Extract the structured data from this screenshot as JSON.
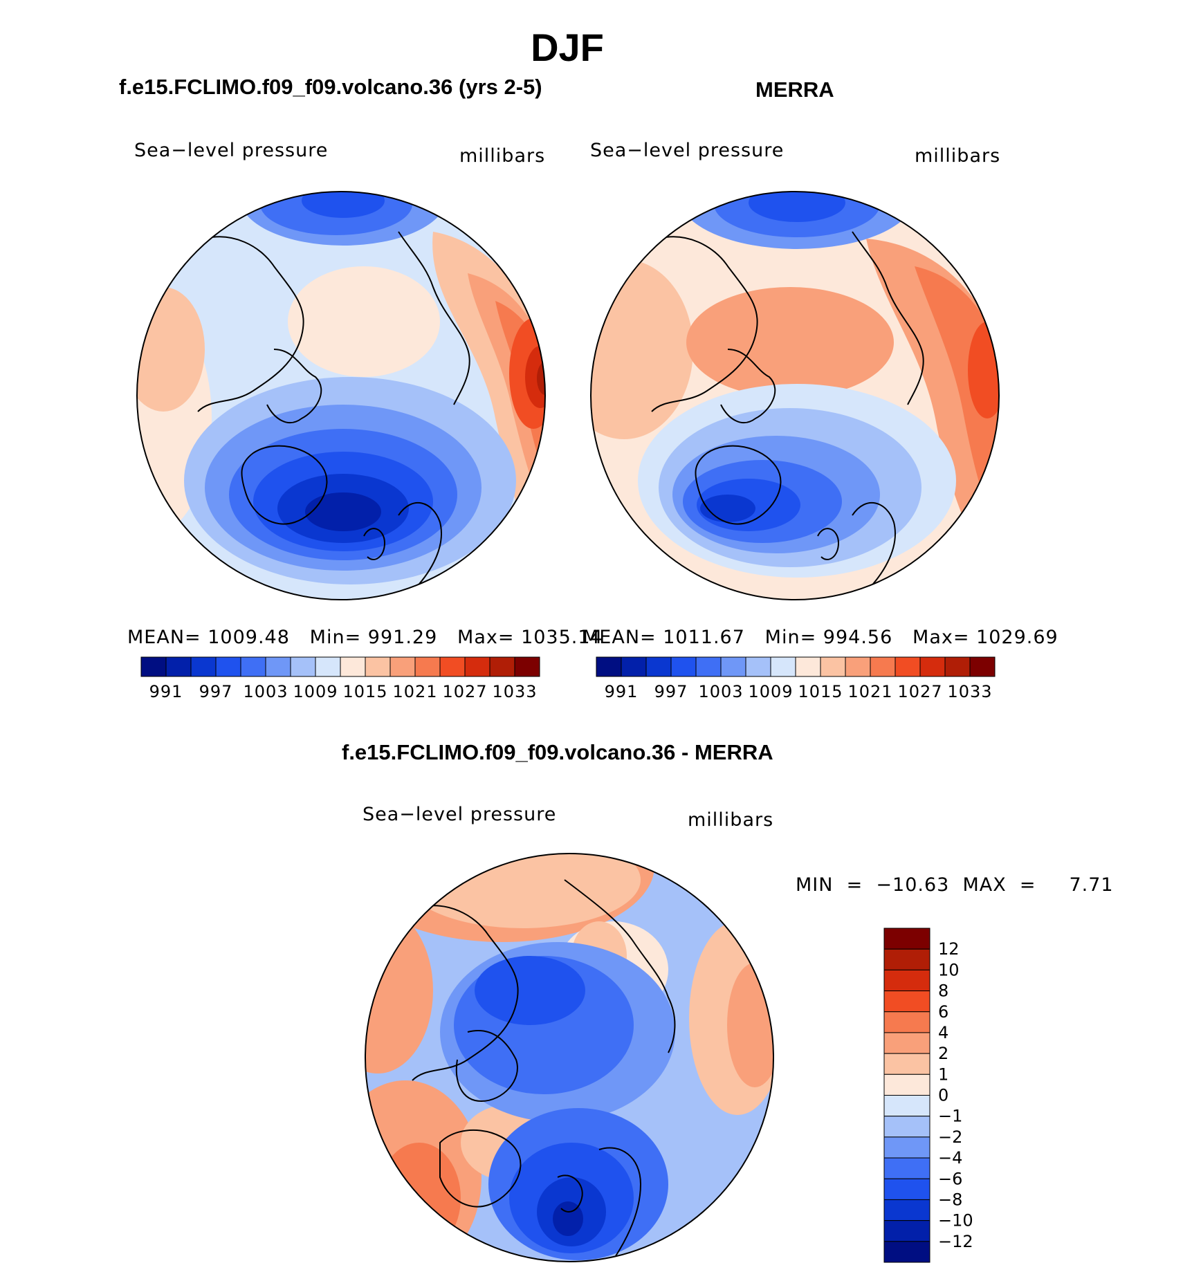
{
  "title": "DJF",
  "variable": "Sea−level pressure",
  "units": "millibars",
  "palette": {
    "abs": [
      "#000e82",
      "#0220aa",
      "#0a37d0",
      "#1f52ee",
      "#3f6ff5",
      "#6f97f7",
      "#a5c1f9",
      "#d6e6fb",
      "#fde8da",
      "#fbc3a3",
      "#f9a07a",
      "#f67a4f",
      "#f14d23",
      "#d52c0d",
      "#b01e06",
      "#7c0000"
    ],
    "diff": [
      "#000e82",
      "#0220aa",
      "#0a37d0",
      "#1f52ee",
      "#3f6ff5",
      "#6f97f7",
      "#a5c1f9",
      "#d6e6fb",
      "#fde8da",
      "#fbc3a3",
      "#f9a07a",
      "#f67a4f",
      "#f14d23",
      "#d52c0d",
      "#b01e06",
      "#7c0000"
    ]
  },
  "panels": {
    "model": {
      "title": "f.e15.FCLIMO.f09_f09.volcano.36 (yrs 2-5)",
      "stats": {
        "mean_label": "MEAN=",
        "mean": "1009.48",
        "min_label": "Min=",
        "min": "991.29",
        "max_label": "Max=",
        "max": "1035.14"
      },
      "colorbar_labels": [
        "991",
        "997",
        "1003",
        "1009",
        "1015",
        "1021",
        "1027",
        "1033"
      ]
    },
    "obs": {
      "title": "MERRA",
      "stats": {
        "mean_label": "MEAN=",
        "mean": "1011.67",
        "min_label": "Min=",
        "min": "994.56",
        "max_label": "Max=",
        "max": "1029.69"
      },
      "colorbar_labels": [
        "991",
        "997",
        "1003",
        "1009",
        "1015",
        "1021",
        "1027",
        "1033"
      ]
    },
    "diff": {
      "title": "f.e15.FCLIMO.f09_f09.volcano.36 - MERRA",
      "stats_text": "MIN  =  −10.63  MAX  =     7.71",
      "colorbar_labels": [
        "12",
        "10",
        "8",
        "6",
        "4",
        "2",
        "1",
        "0",
        "−1",
        "−2",
        "−4",
        "−6",
        "−8",
        "−10",
        "−12"
      ]
    }
  }
}
